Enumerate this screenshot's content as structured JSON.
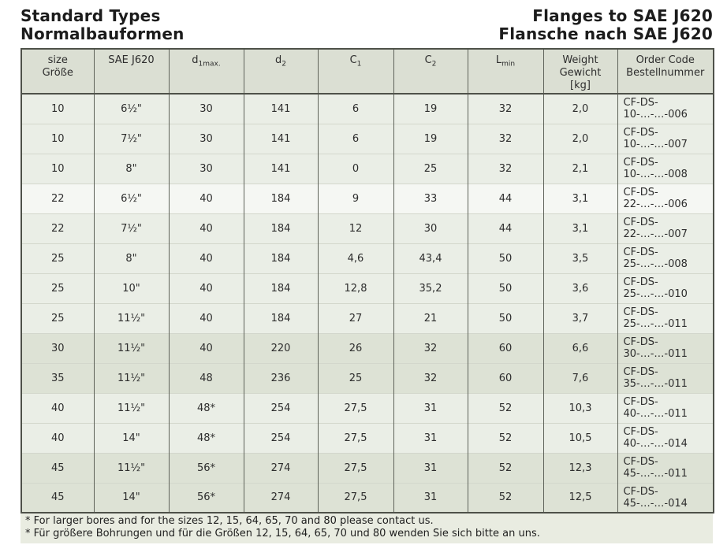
{
  "header": {
    "title_en": "Standard Types",
    "title_de": "Normalbauformen",
    "right_title_en": "Flanges to SAE J620",
    "right_title_de": "Flansche nach SAE J620"
  },
  "table": {
    "col_keys": [
      "size",
      "sae_j620",
      "d1max",
      "d2",
      "c1",
      "c2",
      "lmin",
      "weight",
      "order_code"
    ],
    "headers": [
      {
        "line1": "size",
        "line2": "Größe"
      },
      {
        "line1": "SAE J620"
      },
      {
        "main": "d",
        "sub": "1max."
      },
      {
        "main": "d",
        "sub": "2"
      },
      {
        "main": "C",
        "sub": "1"
      },
      {
        "main": "C",
        "sub": "2"
      },
      {
        "main": "L",
        "sub": "min"
      },
      {
        "line1": "Weight",
        "line2": "Gewicht",
        "line3": "[kg]"
      },
      {
        "line1": "Order Code",
        "line2": "Bestellnummer"
      }
    ],
    "rows": [
      {
        "shade": "a",
        "cells": [
          "10",
          "6½\"",
          "30",
          "141",
          "6",
          "19",
          "32",
          "2,0",
          "CF-DS-10-…-…-006"
        ]
      },
      {
        "shade": "a",
        "cells": [
          "10",
          "7½\"",
          "30",
          "141",
          "6",
          "19",
          "32",
          "2,0",
          "CF-DS-10-…-…-007"
        ]
      },
      {
        "shade": "a",
        "cells": [
          "10",
          "8\"",
          "30",
          "141",
          "0",
          "25",
          "32",
          "2,1",
          "CF-DS-10-…-…-008"
        ]
      },
      {
        "shade": "b",
        "cells": [
          "22",
          "6½\"",
          "40",
          "184",
          "9",
          "33",
          "44",
          "3,1",
          "CF-DS-22-…-…-006"
        ]
      },
      {
        "shade": "a",
        "cells": [
          "22",
          "7½\"",
          "40",
          "184",
          "12",
          "30",
          "44",
          "3,1",
          "CF-DS-22-…-…-007"
        ]
      },
      {
        "shade": "a",
        "cells": [
          "25",
          "8\"",
          "40",
          "184",
          "4,6",
          "43,4",
          "50",
          "3,5",
          "CF-DS-25-…-…-008"
        ]
      },
      {
        "shade": "a",
        "cells": [
          "25",
          "10\"",
          "40",
          "184",
          "12,8",
          "35,2",
          "50",
          "3,6",
          "CF-DS-25-…-…-010"
        ]
      },
      {
        "shade": "a",
        "cells": [
          "25",
          "11½\"",
          "40",
          "184",
          "27",
          "21",
          "50",
          "3,7",
          "CF-DS-25-…-…-011"
        ]
      },
      {
        "shade": "c",
        "cells": [
          "30",
          "11½\"",
          "40",
          "220",
          "26",
          "32",
          "60",
          "6,6",
          "CF-DS-30-…-…-011"
        ]
      },
      {
        "shade": "c",
        "cells": [
          "35",
          "11½\"",
          "48",
          "236",
          "25",
          "32",
          "60",
          "7,6",
          "CF-DS-35-…-…-011"
        ]
      },
      {
        "shade": "a",
        "cells": [
          "40",
          "11½\"",
          "48*",
          "254",
          "27,5",
          "31",
          "52",
          "10,3",
          "CF-DS-40-…-…-011"
        ]
      },
      {
        "shade": "a",
        "cells": [
          "40",
          "14\"",
          "48*",
          "254",
          "27,5",
          "31",
          "52",
          "10,5",
          "CF-DS-40-…-…-014"
        ]
      },
      {
        "shade": "c",
        "cells": [
          "45",
          "11½\"",
          "56*",
          "274",
          "27,5",
          "31",
          "52",
          "12,3",
          "CF-DS-45-…-…-011"
        ]
      },
      {
        "shade": "c",
        "cells": [
          "45",
          "14\"",
          "56*",
          "274",
          "27,5",
          "31",
          "52",
          "12,5",
          "CF-DS-45-…-…-014"
        ]
      }
    ]
  },
  "notes": [
    "* For larger bores and for the sizes 12, 15, 64, 65, 70 and 80 please contact us.",
    "* Für größere Bohrungen und für die Größen 12, 15, 64, 65, 70 und 80 wenden Sie sich bitte an uns."
  ],
  "colors": {
    "row_light": "#eaeee6",
    "row_white": "#f5f7f3",
    "row_dark": "#dde2d5",
    "header_bg": "#dbdfd3",
    "notes_bg": "#e9ece1",
    "border_dark": "#4e5149",
    "text": "#2d2d2d"
  }
}
